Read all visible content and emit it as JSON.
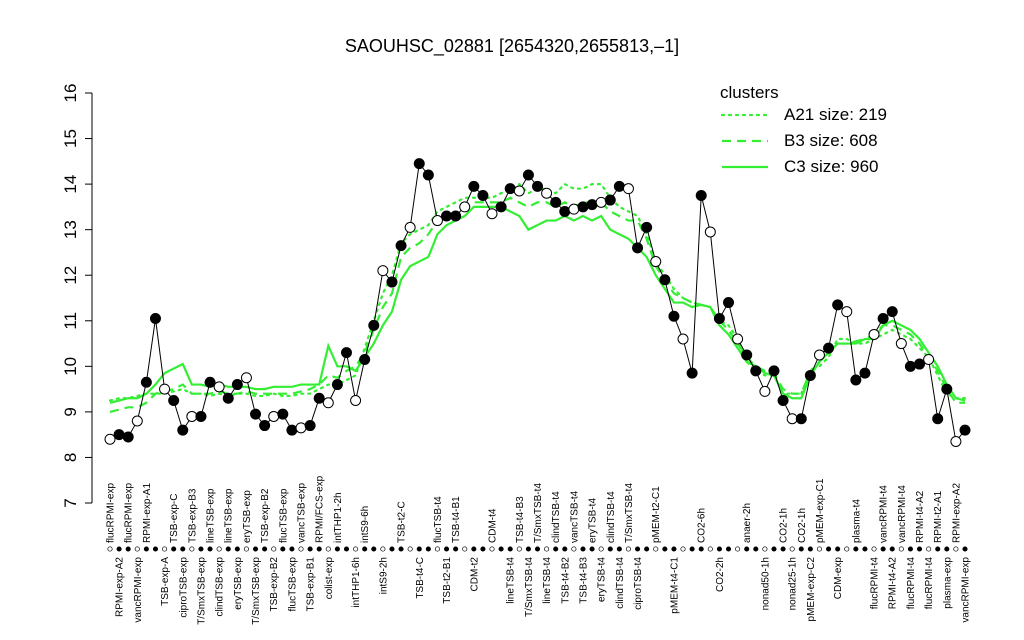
{
  "chart_data": {
    "type": "line",
    "title": "SAOUHSC_02881 [2654320,2655813,–1]",
    "categories": [
      "flucRPMI-exp",
      "RPMI-exp-A2",
      "flucRPMI-exp",
      "vancRPMI-exp",
      "RPMI-exp-A1",
      null,
      "TSB-exp-A",
      "TSB-exp-C",
      "ciproTSB-exp",
      "TSB-exp-B3",
      "T/SmxTSB-exp",
      "lineTSB-exp",
      "clindTSB-exp",
      "lineTSB-exp",
      "eryTSB-exp",
      "eryTSB-exp",
      "T/SmxTSB-exp",
      "TSB-exp-B2",
      "TSB-exp-B2",
      "flucTSB-exp",
      "flucTSB-exp",
      "vancTSB-exp",
      "TSB-exp-B1",
      "RPMI/FCS-exp",
      "colist-exp",
      "intTHP1-2h",
      null,
      "intTHP1-6h",
      "intS9-6h",
      null,
      "intS9-2h",
      null,
      "TSB-t2-C",
      null,
      "TSB-t4-C",
      null,
      "flucTSB-t4",
      "TSB-t2-B1",
      "TSB-t4-B1",
      null,
      "CDM-t2",
      null,
      "CDM-t4",
      null,
      "lineTSB-t4",
      "TSB-t4-B3",
      "T/SmxTSB-t4",
      "T/SmxTSB-t4",
      "lineTSB-t4",
      "clindTSB-t4",
      "TSB-t4-B2",
      "vancTSB-t4",
      "TSB-t4-B3",
      "eryTSB-t4",
      "eryTSB-t4",
      "clindTSB-t4",
      "clindTSB-t4",
      "T/SmxTSB-t4",
      "ciproTSB-t4",
      null,
      "pMEM-t2-C1",
      null,
      "pMEM-t4-C1",
      null,
      null,
      "CO2-6h",
      null,
      "CO2-2h",
      null,
      null,
      "anaer-2h",
      null,
      "nonad50-1h",
      null,
      "CO2-1h",
      "nonad25-1h",
      "CO2-1h",
      "pMEM-exp-C2",
      "pMEM-exp-C1",
      null,
      "CDM-exp",
      null,
      "plasma-t4",
      null,
      "flucRPMI-t4",
      "vancRPMI-t4",
      "RPMI-t4-A2",
      "vancRPMI-t4",
      "flucRPMI-t4",
      "RPMI-t4-A2",
      "flucRPMI-t4",
      "RPMI-t2-A1",
      "plasma-exp",
      "RPMI-exp-A2",
      "vancRPMI-exp"
    ],
    "values": [
      8.4,
      8.5,
      8.45,
      8.8,
      9.65,
      11.05,
      9.5,
      9.25,
      8.6,
      8.9,
      8.9,
      9.65,
      9.55,
      9.3,
      9.6,
      9.75,
      8.95,
      8.7,
      8.9,
      8.95,
      8.6,
      8.65,
      8.7,
      9.3,
      9.2,
      9.6,
      10.3,
      9.25,
      10.15,
      10.9,
      12.1,
      11.85,
      12.65,
      13.05,
      14.45,
      14.2,
      13.2,
      13.3,
      13.3,
      13.5,
      13.95,
      13.75,
      13.35,
      13.5,
      13.9,
      13.85,
      14.2,
      13.95,
      13.8,
      13.6,
      13.4,
      13.45,
      13.5,
      13.55,
      13.6,
      13.65,
      13.95,
      13.9,
      12.6,
      13.05,
      12.3,
      11.9,
      11.1,
      10.6,
      9.85,
      13.75,
      12.95,
      11.05,
      11.4,
      10.6,
      10.25,
      9.9,
      9.45,
      9.9,
      9.25,
      8.85,
      8.85,
      9.8,
      10.25,
      10.4,
      11.35,
      11.2,
      9.7,
      9.85,
      10.7,
      11.05,
      11.2,
      10.5,
      10.0,
      10.05,
      10.15,
      8.85,
      9.5,
      8.35,
      8.6
    ],
    "color": "#000000",
    "legend_title": "clusters",
    "series": [
      {
        "name": "A21 size: 219",
        "color": "#33ee33",
        "dash": "dotted",
        "values": [
          9.25,
          9.3,
          9.3,
          9.35,
          9.4,
          9.4,
          9.4,
          9.45,
          9.5,
          9.4,
          9.4,
          9.35,
          9.4,
          9.35,
          9.4,
          9.4,
          9.35,
          9.35,
          9.4,
          9.35,
          9.35,
          9.4,
          9.4,
          9.5,
          9.6,
          9.6,
          9.7,
          9.8,
          10.4,
          11.0,
          11.6,
          12.0,
          12.7,
          12.9,
          13.0,
          13.1,
          13.4,
          13.5,
          13.6,
          13.7,
          13.7,
          13.7,
          13.7,
          13.8,
          13.9,
          14.0,
          13.8,
          13.9,
          13.9,
          13.8,
          14.0,
          13.9,
          13.9,
          14.0,
          14.0,
          13.7,
          13.5,
          13.4,
          13.3,
          12.9,
          12.3,
          12.0,
          11.7,
          11.5,
          11.4,
          11.35,
          11.3,
          11.0,
          10.9,
          10.6,
          10.1,
          9.9,
          9.8,
          9.8,
          9.4,
          9.4,
          9.4,
          9.9,
          10.0,
          10.2,
          10.6,
          10.6,
          10.5,
          10.5,
          10.6,
          10.7,
          10.8,
          10.7,
          10.6,
          10.4,
          10.2,
          9.8,
          9.4,
          9.3,
          9.3
        ]
      },
      {
        "name": "B3 size: 608",
        "color": "#33ee33",
        "dash": "dashed",
        "values": [
          9.0,
          9.05,
          9.1,
          9.1,
          9.2,
          9.4,
          9.45,
          9.5,
          9.6,
          9.4,
          9.4,
          9.4,
          9.45,
          9.4,
          9.4,
          9.45,
          9.4,
          9.4,
          9.4,
          9.4,
          9.4,
          9.45,
          9.5,
          9.6,
          9.8,
          9.75,
          9.9,
          10.0,
          10.3,
          10.8,
          11.3,
          11.6,
          12.4,
          12.6,
          12.7,
          12.9,
          13.2,
          13.3,
          13.4,
          13.5,
          13.6,
          13.6,
          13.6,
          13.6,
          13.7,
          13.6,
          13.5,
          13.6,
          13.6,
          13.5,
          13.6,
          13.5,
          13.6,
          13.6,
          13.6,
          13.4,
          13.3,
          13.2,
          13.2,
          12.8,
          12.2,
          11.9,
          11.6,
          11.5,
          11.4,
          11.35,
          11.3,
          11.0,
          10.8,
          10.5,
          10.2,
          10.0,
          9.9,
          9.85,
          9.5,
          9.4,
          9.4,
          9.9,
          10.1,
          10.3,
          10.5,
          10.5,
          10.55,
          10.6,
          10.7,
          10.9,
          10.9,
          10.8,
          10.7,
          10.5,
          10.2,
          9.9,
          9.5,
          9.2,
          9.2
        ]
      },
      {
        "name": "C3 size: 960",
        "color": "#33ee33",
        "dash": "solid",
        "values": [
          9.2,
          9.25,
          9.3,
          9.3,
          9.4,
          9.6,
          9.85,
          9.95,
          10.05,
          9.6,
          9.6,
          9.55,
          9.6,
          9.55,
          9.55,
          9.55,
          9.5,
          9.5,
          9.55,
          9.55,
          9.55,
          9.6,
          9.6,
          9.6,
          10.45,
          10.0,
          10.0,
          9.9,
          10.2,
          10.5,
          10.9,
          11.2,
          11.9,
          12.2,
          12.3,
          12.4,
          12.9,
          13.1,
          13.2,
          13.3,
          13.5,
          13.5,
          13.5,
          13.5,
          13.4,
          13.3,
          13.0,
          13.1,
          13.2,
          13.2,
          13.3,
          13.2,
          13.3,
          13.2,
          13.3,
          13.0,
          12.9,
          12.8,
          12.6,
          12.4,
          12.0,
          11.7,
          11.4,
          11.4,
          11.3,
          11.35,
          11.3,
          10.9,
          10.7,
          10.4,
          10.1,
          10.0,
          9.85,
          9.8,
          9.4,
          9.3,
          9.3,
          9.8,
          10.1,
          10.3,
          10.5,
          10.5,
          10.5,
          10.6,
          10.6,
          10.9,
          11.0,
          10.9,
          10.8,
          10.6,
          10.3,
          10.0,
          9.6,
          9.3,
          9.25
        ]
      }
    ],
    "ylim": [
      7,
      16
    ],
    "yticks": [
      7,
      8,
      9,
      10,
      11,
      12,
      13,
      14,
      15,
      16
    ]
  }
}
